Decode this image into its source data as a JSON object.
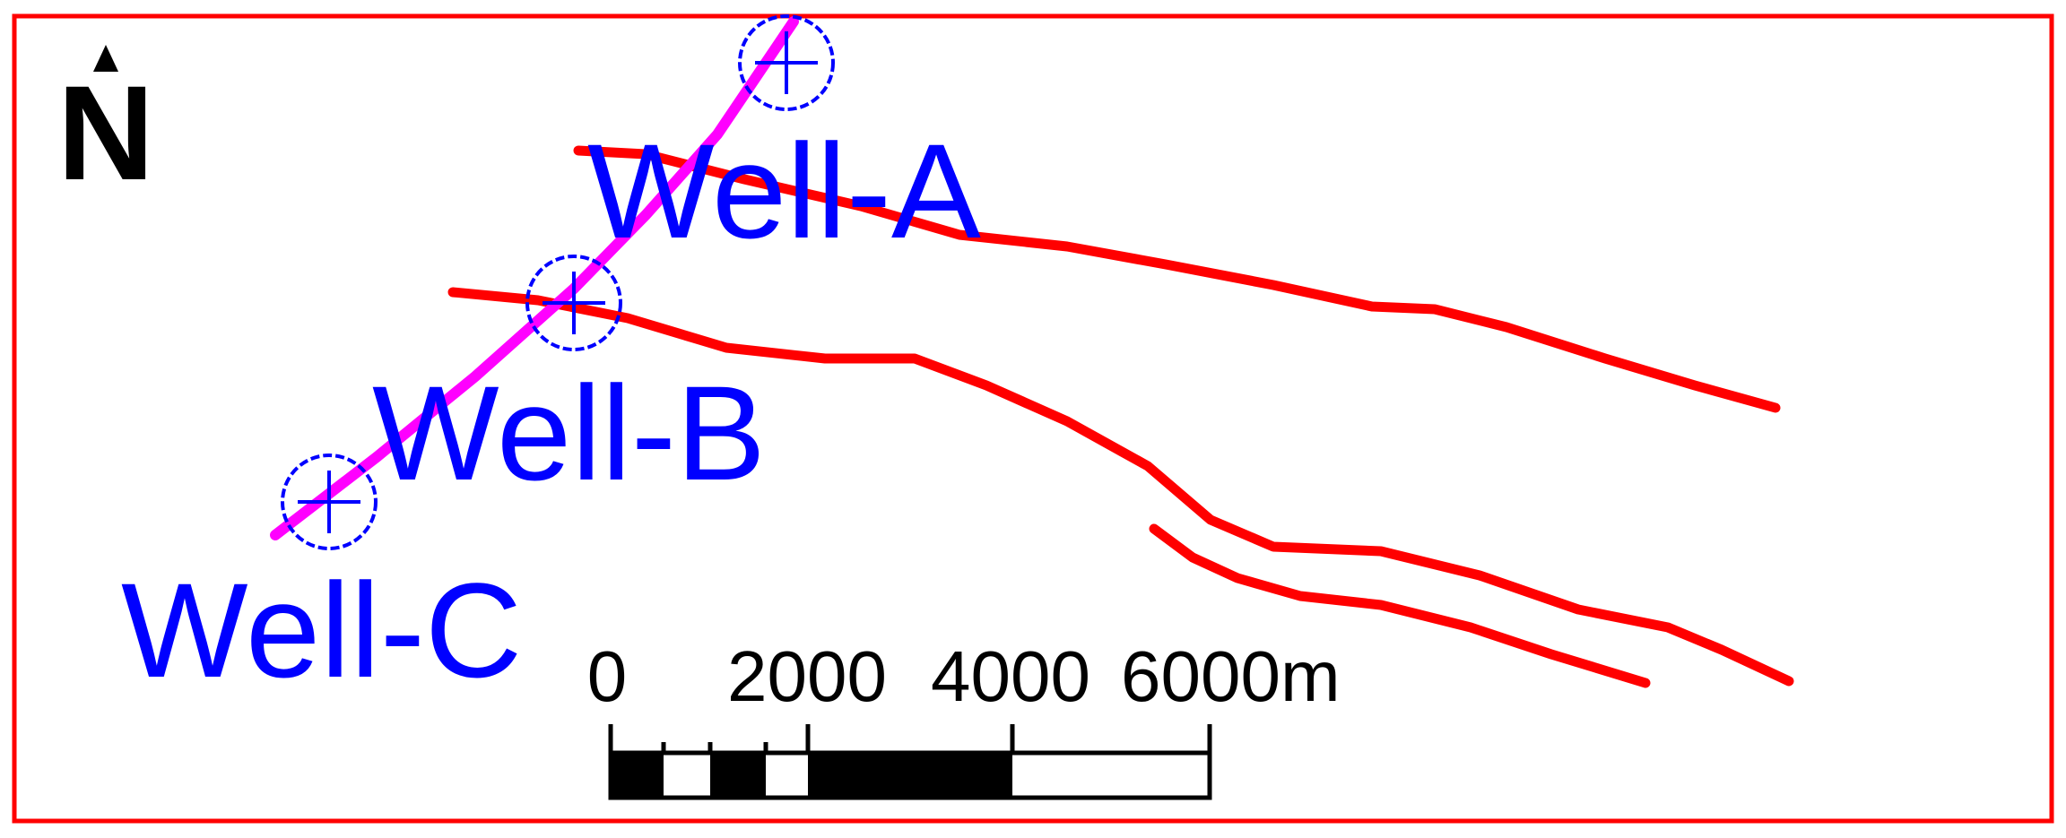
{
  "map": {
    "frame_color": "#ff0000",
    "north_arrow": {
      "letter": "N",
      "icon": "north-arrow-icon"
    },
    "wells": [
      {
        "id": "well-a",
        "label": "Well-A"
      },
      {
        "id": "well-b",
        "label": "Well-B"
      },
      {
        "id": "well-c",
        "label": "Well-C"
      }
    ],
    "well_color": "#0000ff",
    "section_line_color": "#ff00ff",
    "fault_color": "#ff0000",
    "scale_bar": {
      "labels": [
        "0",
        "2000",
        "4000",
        "6000m"
      ],
      "unit": "m"
    }
  }
}
